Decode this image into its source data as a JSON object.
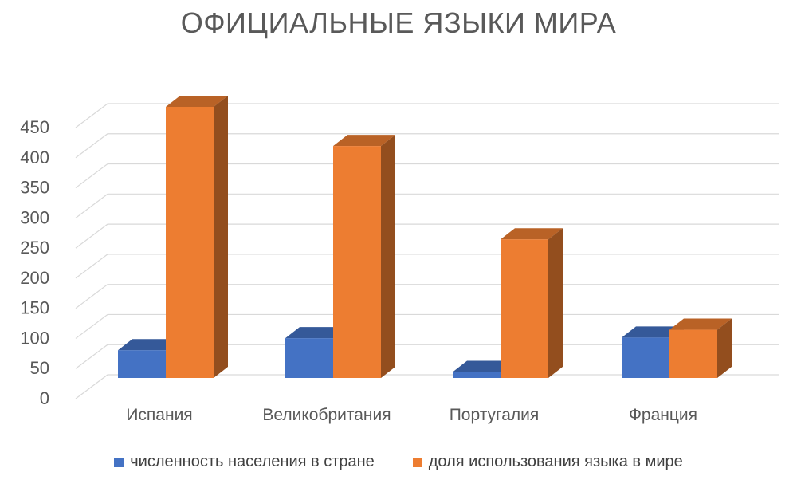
{
  "chart_data": {
    "type": "bar",
    "title": "ОФИЦИАЛЬНЫЕ ЯЗЫКИ МИРА",
    "categories": [
      "Испания",
      "Великобритания",
      "Португалия",
      "Франция"
    ],
    "series": [
      {
        "name": "численность населения в стране",
        "values": [
          46,
          66,
          10,
          67
        ],
        "color": "#4472C4"
      },
      {
        "name": "доля использования языка в мире",
        "values": [
          450,
          385,
          230,
          80
        ],
        "color": "#ED7D31"
      }
    ],
    "ylim": [
      0,
      450
    ],
    "yticks": [
      "0",
      "50",
      "100",
      "150",
      "200",
      "250",
      "300",
      "350",
      "400",
      "450"
    ],
    "legend_position": "bottom",
    "grid": true,
    "style": "3d-clustered-column"
  }
}
